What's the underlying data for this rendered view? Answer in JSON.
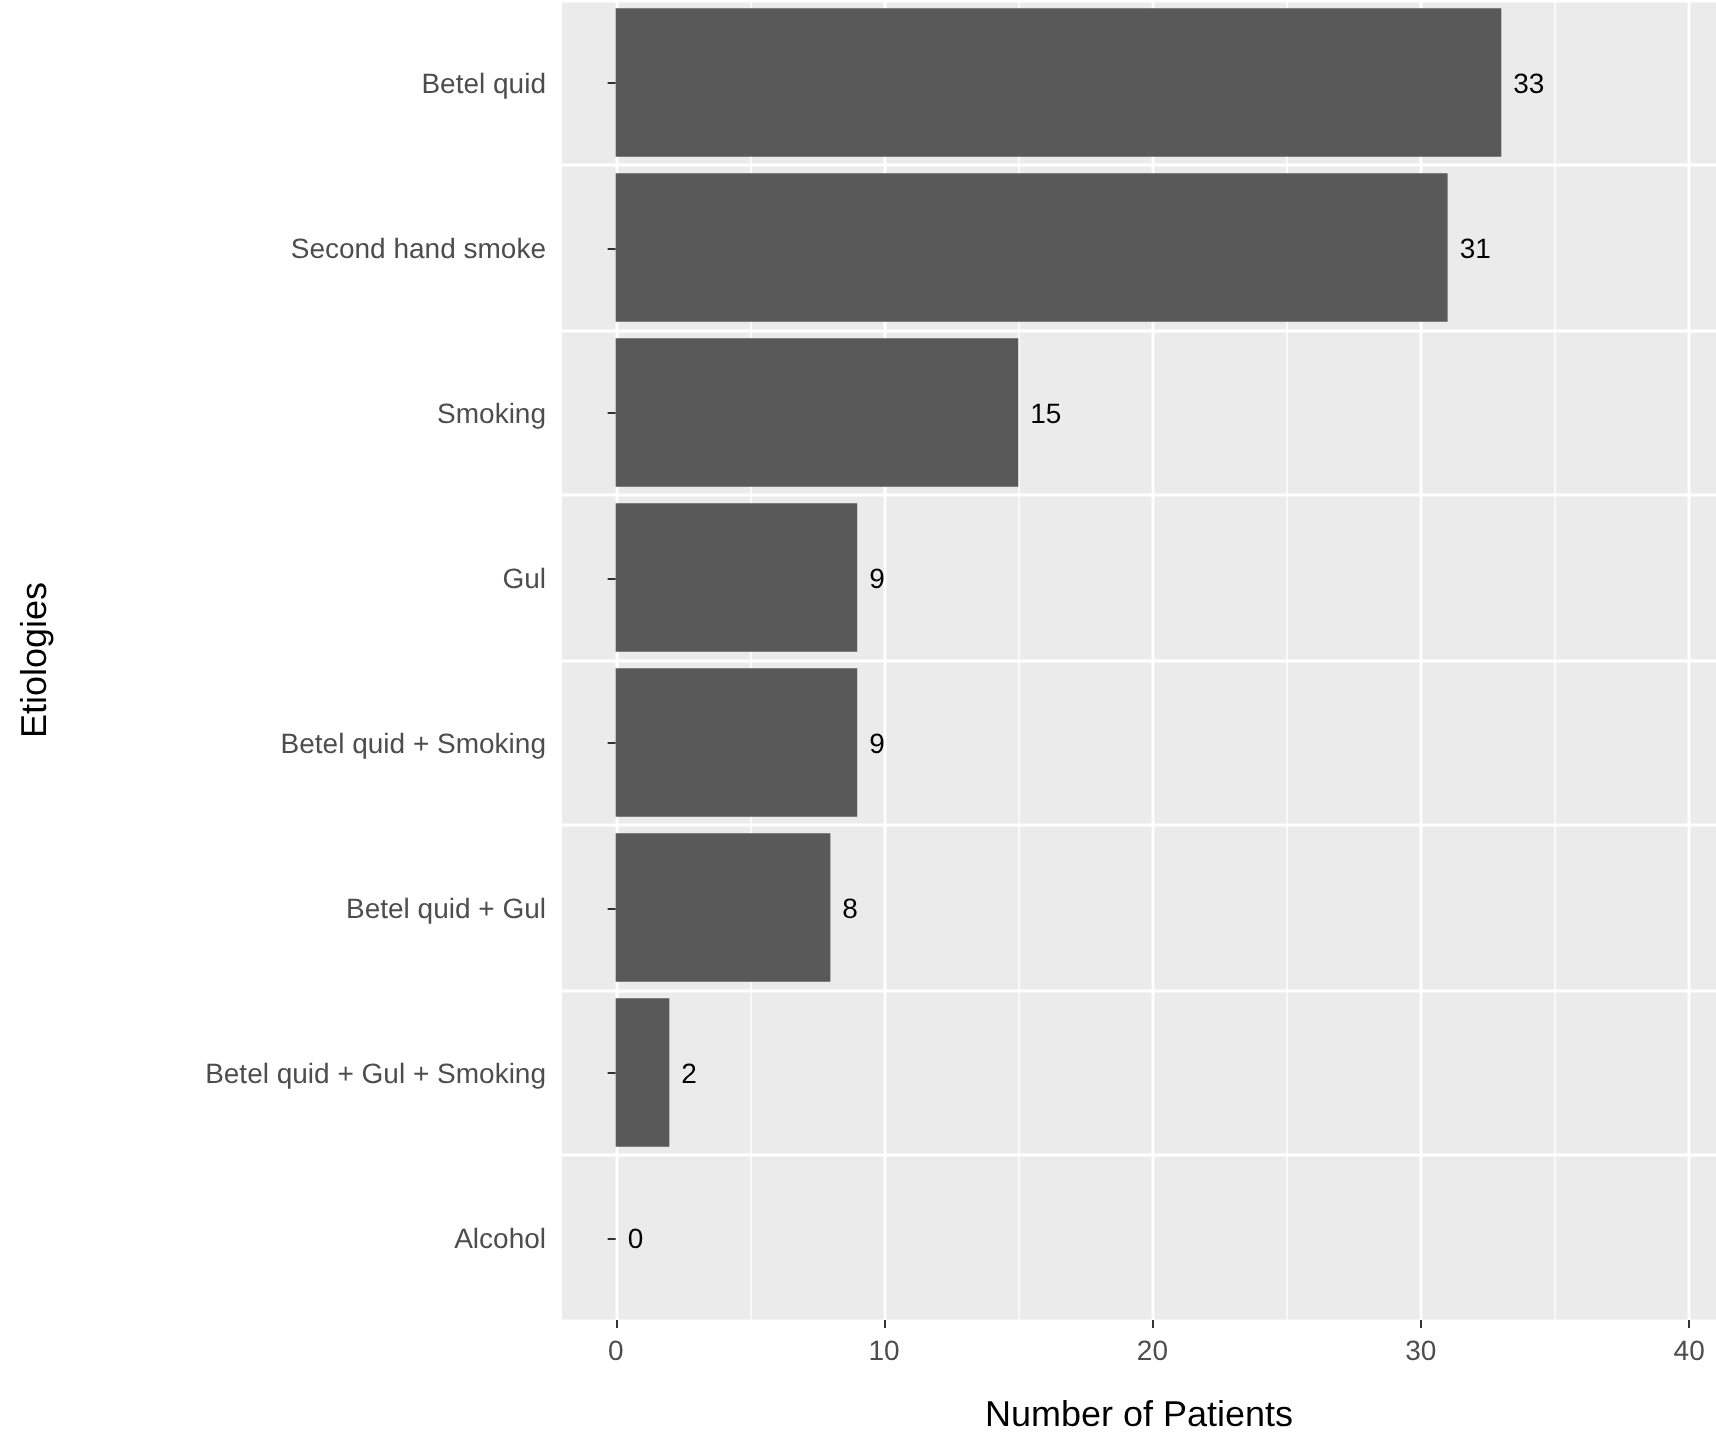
{
  "chart_data": {
    "type": "bar",
    "orientation": "horizontal",
    "xlabel": "Number of Patients",
    "ylabel": "Etiologies",
    "categories": [
      "Betel quid",
      "Second hand smoke",
      "Smoking",
      "Gul",
      "Betel quid + Smoking",
      "Betel quid + Gul",
      "Betel quid + Gul + Smoking",
      "Alcohol"
    ],
    "values": [
      33,
      31,
      15,
      9,
      9,
      8,
      2,
      0
    ],
    "color": "#595959",
    "xlim": [
      -2,
      41
    ],
    "xticks": [
      0,
      10,
      20,
      30,
      40
    ],
    "grid": true,
    "data_labels": true
  }
}
